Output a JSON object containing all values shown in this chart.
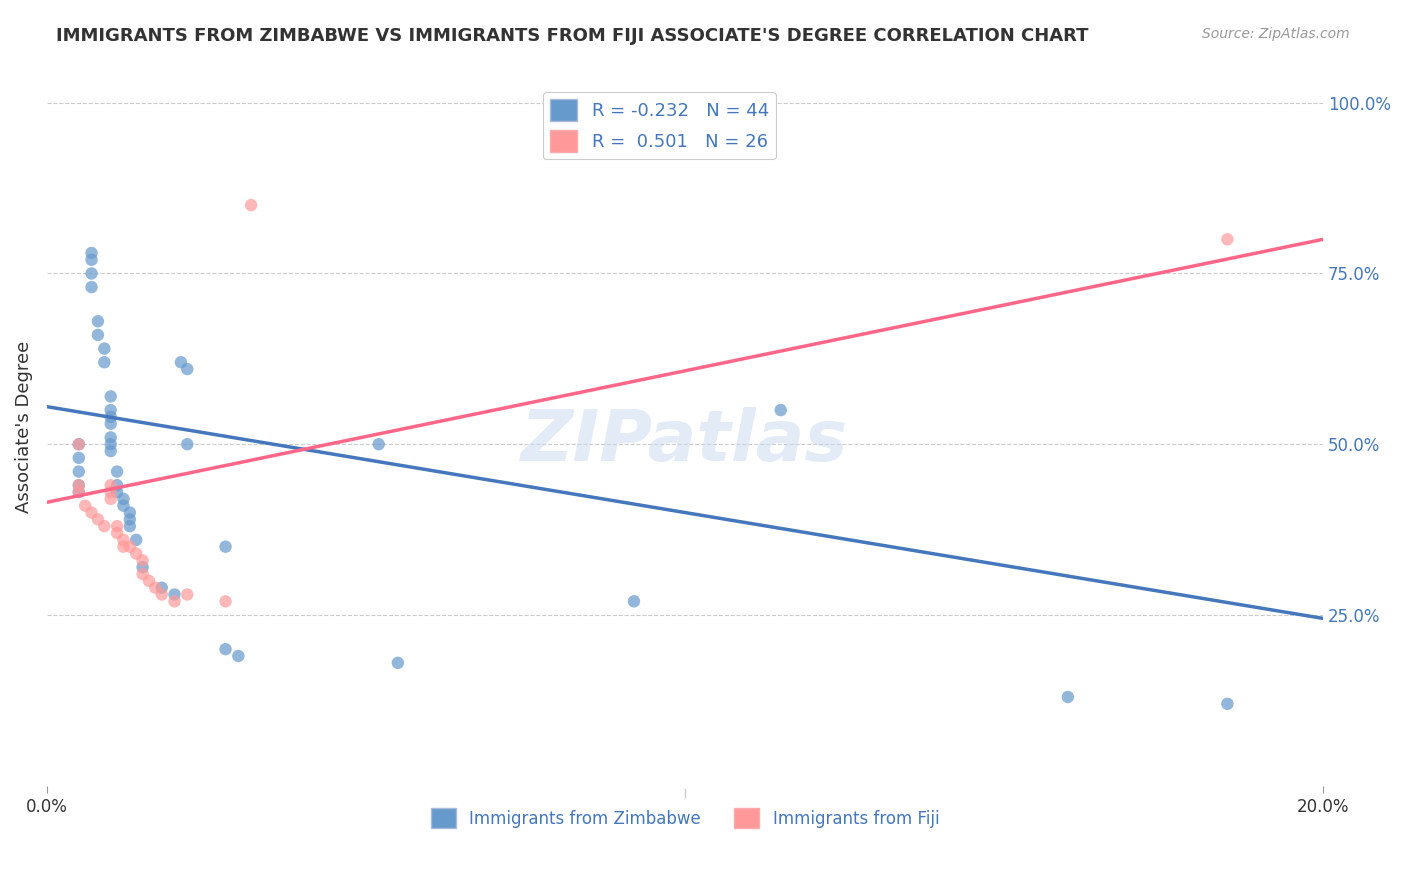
{
  "title": "IMMIGRANTS FROM ZIMBABWE VS IMMIGRANTS FROM FIJI ASSOCIATE'S DEGREE CORRELATION CHART",
  "source": "Source: ZipAtlas.com",
  "ylabel": "Associate's Degree",
  "ylabel_right_labels": [
    "100.0%",
    "75.0%",
    "50.0%",
    "25.0%"
  ],
  "ylabel_right_values": [
    1.0,
    0.75,
    0.5,
    0.25
  ],
  "xlim": [
    0.0,
    0.2
  ],
  "ylim": [
    0.0,
    1.05
  ],
  "watermark": "ZIPatlas",
  "blue_color": "#6699CC",
  "pink_color": "#FF9999",
  "blue_line_color": "#4477BB",
  "pink_line_color": "#FF6688",
  "background_color": "#FFFFFF",
  "grid_color": "#CCCCCC",
  "zimbabwe_points_x": [
    0.005,
    0.005,
    0.005,
    0.005,
    0.005,
    0.007,
    0.007,
    0.007,
    0.007,
    0.008,
    0.008,
    0.009,
    0.009,
    0.01,
    0.01,
    0.01,
    0.01,
    0.01,
    0.01,
    0.01,
    0.011,
    0.011,
    0.011,
    0.012,
    0.012,
    0.013,
    0.013,
    0.013,
    0.014,
    0.015,
    0.018,
    0.02,
    0.021,
    0.022,
    0.022,
    0.028,
    0.028,
    0.03,
    0.052,
    0.055,
    0.092,
    0.115,
    0.16,
    0.185
  ],
  "zimbabwe_points_y": [
    0.5,
    0.48,
    0.46,
    0.44,
    0.43,
    0.78,
    0.77,
    0.75,
    0.73,
    0.68,
    0.66,
    0.64,
    0.62,
    0.57,
    0.55,
    0.54,
    0.53,
    0.51,
    0.5,
    0.49,
    0.46,
    0.44,
    0.43,
    0.42,
    0.41,
    0.4,
    0.39,
    0.38,
    0.36,
    0.32,
    0.29,
    0.28,
    0.62,
    0.61,
    0.5,
    0.35,
    0.2,
    0.19,
    0.5,
    0.18,
    0.27,
    0.55,
    0.13,
    0.12
  ],
  "fiji_points_x": [
    0.005,
    0.005,
    0.005,
    0.006,
    0.007,
    0.008,
    0.009,
    0.01,
    0.01,
    0.01,
    0.011,
    0.011,
    0.012,
    0.012,
    0.013,
    0.014,
    0.015,
    0.015,
    0.016,
    0.017,
    0.018,
    0.02,
    0.022,
    0.028,
    0.032,
    0.185
  ],
  "fiji_points_y": [
    0.5,
    0.44,
    0.43,
    0.41,
    0.4,
    0.39,
    0.38,
    0.44,
    0.43,
    0.42,
    0.38,
    0.37,
    0.36,
    0.35,
    0.35,
    0.34,
    0.33,
    0.31,
    0.3,
    0.29,
    0.28,
    0.27,
    0.28,
    0.27,
    0.85,
    0.8
  ],
  "blue_trend_x": [
    0.0,
    0.2
  ],
  "blue_trend_y": [
    0.555,
    0.245
  ],
  "pink_trend_x": [
    0.0,
    0.2
  ],
  "pink_trend_y": [
    0.415,
    0.8
  ]
}
